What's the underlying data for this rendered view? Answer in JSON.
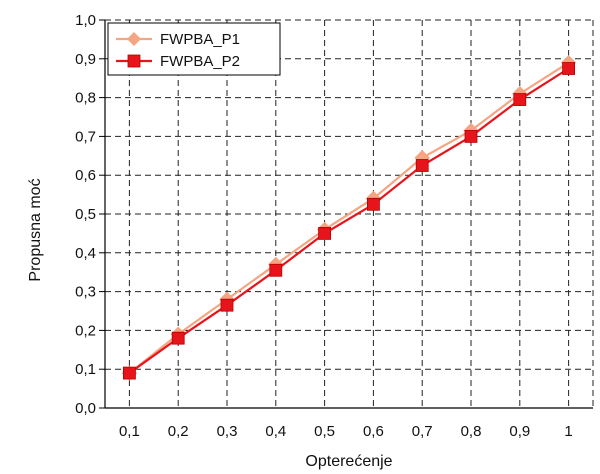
{
  "chart_data": {
    "type": "line",
    "xlabel": "Opterećenje",
    "ylabel": "Propusna moć",
    "x_tick_labels": [
      "0,1",
      "0,2",
      "0,3",
      "0,4",
      "0,5",
      "0,6",
      "0,7",
      "0,8",
      "0,9",
      "1"
    ],
    "y_tick_labels": [
      "0,0",
      "0,1",
      "0,2",
      "0,3",
      "0,4",
      "0,5",
      "0,6",
      "0,7",
      "0,8",
      "0,9",
      "1,0"
    ],
    "xlim": [
      0.05,
      1.05
    ],
    "ylim": [
      0,
      1
    ],
    "grid": true,
    "legend_position": "top-left",
    "series": [
      {
        "name": "FWPBA_P1",
        "color": "#F4A582",
        "marker": "diamond",
        "x": [
          0.1,
          0.2,
          0.3,
          0.4,
          0.5,
          0.6,
          0.7,
          0.8,
          0.9,
          1.0
        ],
        "y": [
          0.09,
          0.19,
          0.28,
          0.37,
          0.46,
          0.54,
          0.645,
          0.715,
          0.81,
          0.89
        ]
      },
      {
        "name": "FWPBA_P2",
        "color": "#E8141B",
        "marker": "square",
        "x": [
          0.1,
          0.2,
          0.3,
          0.4,
          0.5,
          0.6,
          0.7,
          0.8,
          0.9,
          1.0
        ],
        "y": [
          0.09,
          0.18,
          0.265,
          0.355,
          0.45,
          0.525,
          0.625,
          0.7,
          0.795,
          0.875
        ]
      }
    ]
  }
}
